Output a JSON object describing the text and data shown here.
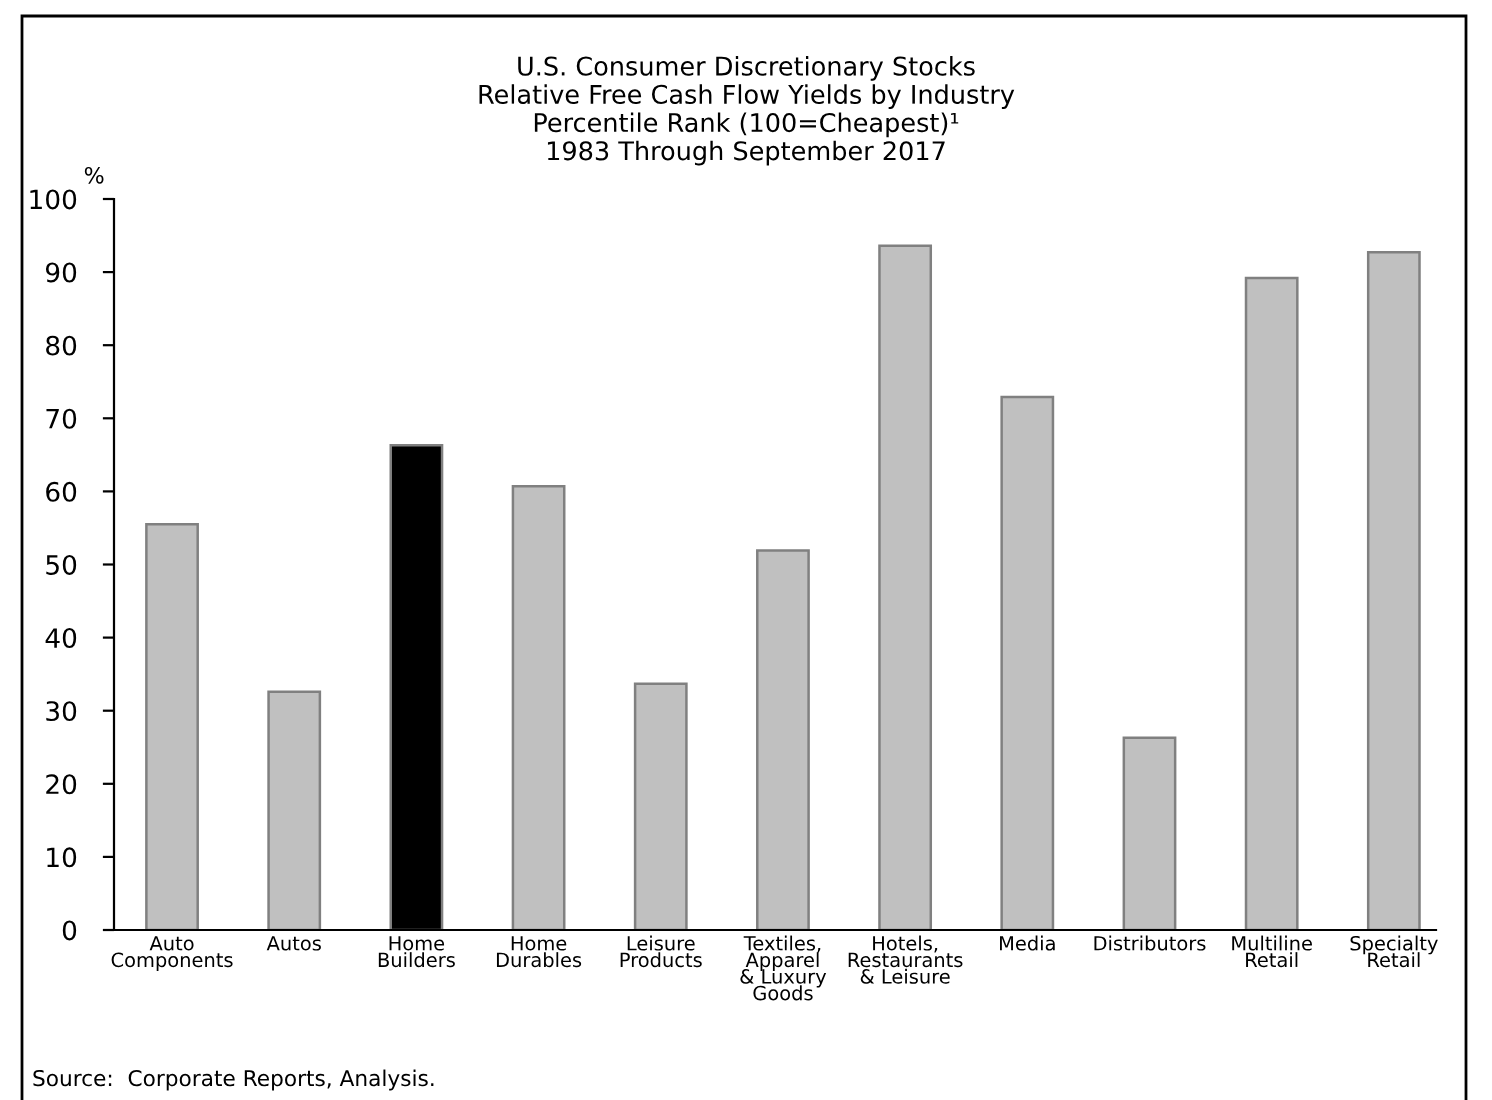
{
  "chart_data": {
    "type": "bar",
    "title": "U.S. Consumer Discretionary Stocks",
    "subtitle": "Relative Free Cash Flow Yields by Industry\nPercentile Rank (100=Cheapest)¹\n1983 Through September 2017",
    "ylabel": "%",
    "categories": [
      "Auto\nComponents",
      "Autos",
      "Home\nBuilders",
      "Home\nDurables",
      "Leisure\nProducts",
      "Textiles,\nApparel\n& Luxury\nGoods",
      "Hotels,\nRestaurants\n& Leisure",
      "Media",
      "Distributors",
      "Multiline\nRetail",
      "Specialty\nRetail"
    ],
    "values": [
      55.5,
      32.6,
      66.3,
      60.7,
      33.7,
      51.9,
      93.6,
      72.9,
      26.3,
      89.2,
      92.7
    ],
    "colors": [
      "#c0c0c0",
      "#c0c0c0",
      "#000000",
      "#c0c0c0",
      "#c0c0c0",
      "#c0c0c0",
      "#c0c0c0",
      "#c0c0c0",
      "#c0c0c0",
      "#c0c0c0",
      "#c0c0c0"
    ],
    "ylim": [
      0,
      100
    ],
    "yticks": [
      0,
      10,
      20,
      30,
      40,
      50,
      60,
      70,
      80,
      90,
      100
    ],
    "annotations": [
      "Source:  Corporate Reports, Analysis."
    ]
  }
}
